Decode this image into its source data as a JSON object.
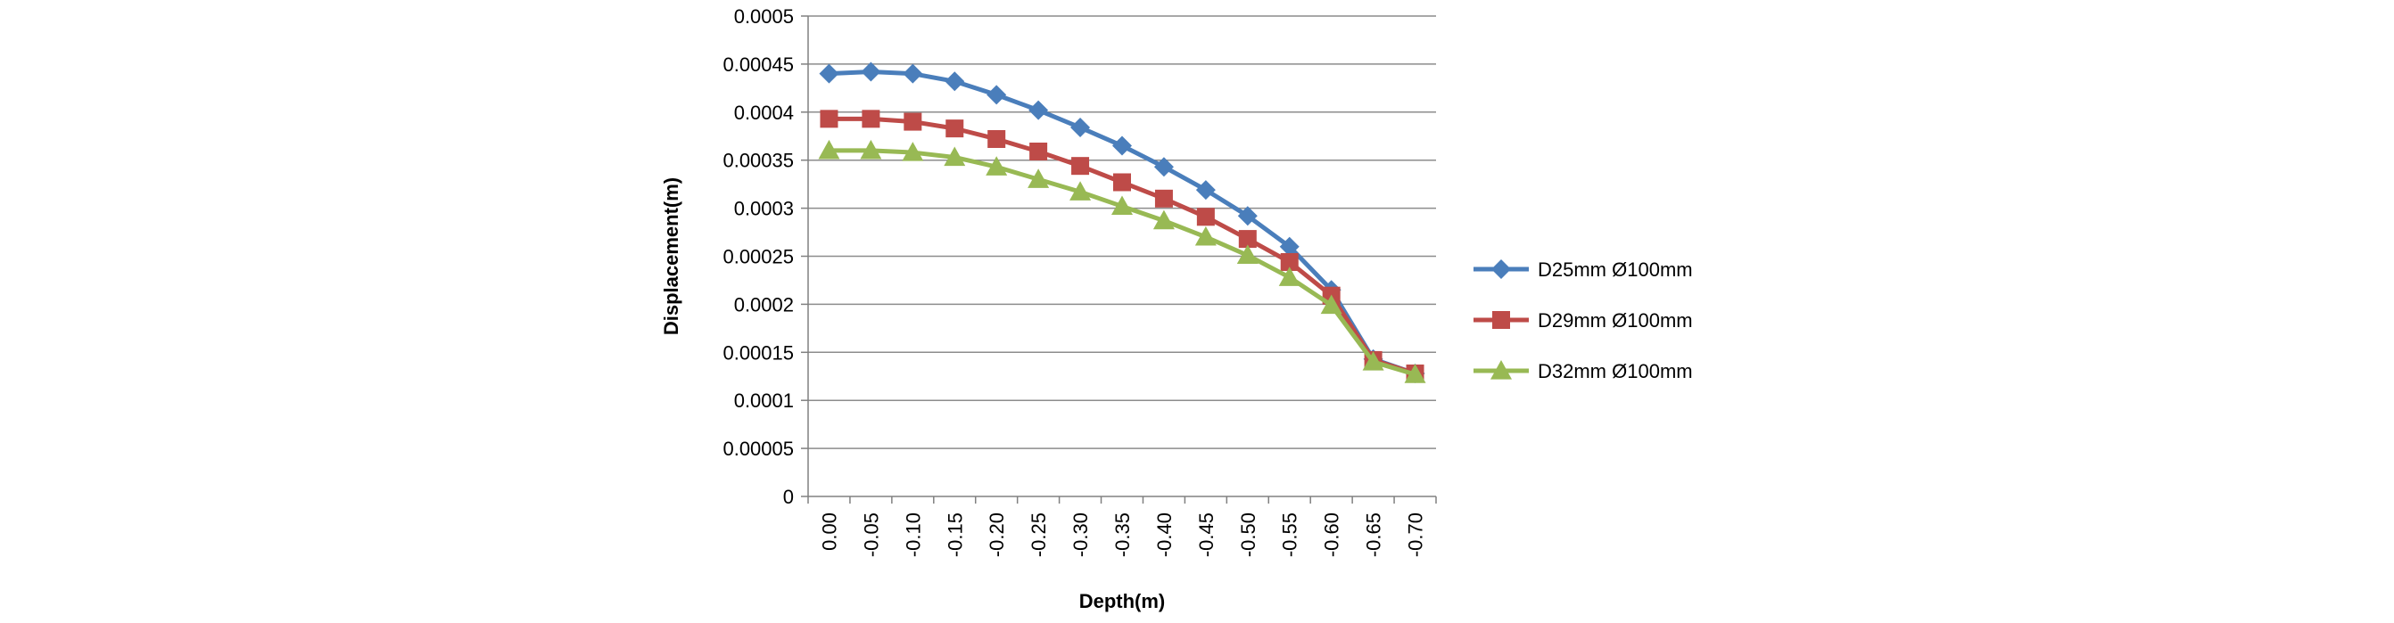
{
  "chart_data": {
    "type": "line",
    "title": "",
    "xlabel": "Depth(m)",
    "ylabel": "Displacement(m)",
    "categories": [
      "0.00",
      "-0.05",
      "-0.10",
      "-0.15",
      "-0.20",
      "-0.25",
      "-0.30",
      "-0.35",
      "-0.40",
      "-0.45",
      "-0.50",
      "-0.55",
      "-0.60",
      "-0.65",
      "-0.70"
    ],
    "ylim": [
      0,
      0.0005
    ],
    "yticks": [
      "0",
      "0.00005",
      "0.0001",
      "0.00015",
      "0.0002",
      "0.00025",
      "0.0003",
      "0.00035",
      "0.0004",
      "0.00045",
      "0.0005"
    ],
    "grid": true,
    "legend_position": "right",
    "series": [
      {
        "name": "D25mm Ø100mm",
        "color": "#4a7ebb",
        "marker": "diamond",
        "values": [
          0.00044,
          0.000442,
          0.00044,
          0.000432,
          0.000418,
          0.000402,
          0.000384,
          0.000365,
          0.000343,
          0.000319,
          0.000292,
          0.00026,
          0.000215,
          0.000143,
          0.000128
        ]
      },
      {
        "name": "D29mm Ø100mm",
        "color": "#be4b48",
        "marker": "square",
        "values": [
          0.000393,
          0.000393,
          0.00039,
          0.000383,
          0.000372,
          0.000359,
          0.000344,
          0.000327,
          0.00031,
          0.000291,
          0.000268,
          0.000244,
          0.000209,
          0.000142,
          0.000128
        ]
      },
      {
        "name": "D32mm Ø100mm",
        "color": "#98b954",
        "marker": "triangle",
        "values": [
          0.00036,
          0.00036,
          0.000358,
          0.000353,
          0.000343,
          0.00033,
          0.000317,
          0.000302,
          0.000287,
          0.00027,
          0.000251,
          0.000228,
          0.000199,
          0.00014,
          0.000127
        ]
      }
    ]
  }
}
